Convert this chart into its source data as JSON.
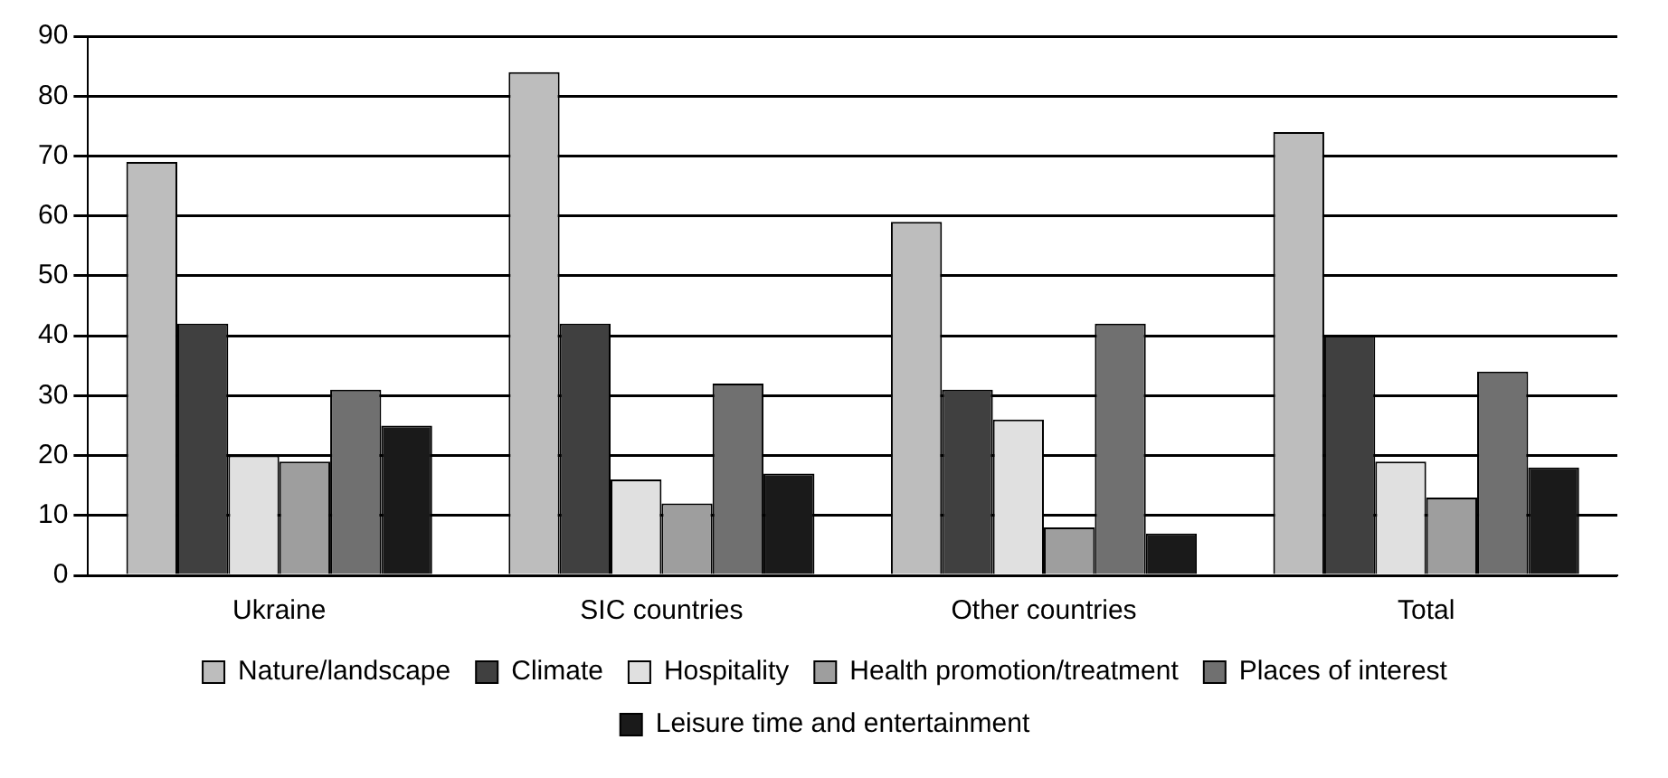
{
  "chart_data": {
    "type": "bar",
    "categories": [
      "Ukraine",
      "SIC countries",
      "Other countries",
      "Total"
    ],
    "series": [
      {
        "name": "Nature/landscape",
        "color": "#bdbdbd",
        "values": [
          69,
          84,
          59,
          74
        ]
      },
      {
        "name": "Climate",
        "color": "#404040",
        "values": [
          42,
          42,
          31,
          40
        ]
      },
      {
        "name": "Hospitality",
        "color": "#e0e0e0",
        "values": [
          20,
          16,
          26,
          19
        ]
      },
      {
        "name": "Health promotion/treatment",
        "color": "#9e9e9e",
        "values": [
          19,
          12,
          8,
          13
        ]
      },
      {
        "name": "Places of interest",
        "color": "#707070",
        "values": [
          31,
          32,
          42,
          34
        ]
      },
      {
        "name": "Leisure time and entertainment",
        "color": "#1a1a1a",
        "values": [
          25,
          17,
          7,
          18
        ]
      }
    ],
    "ylim": [
      0,
      90
    ],
    "yticks": [
      0,
      10,
      20,
      30,
      40,
      50,
      60,
      70,
      80,
      90
    ],
    "grid": "y",
    "legend": "bottom"
  }
}
